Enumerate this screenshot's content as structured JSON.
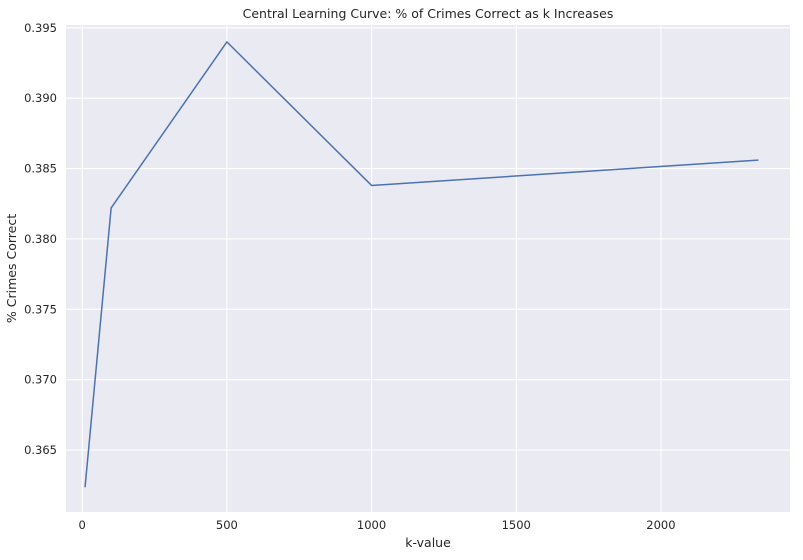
{
  "chart_data": {
    "type": "line",
    "title": "Central Learning Curve: % of Crimes Correct as k Increases",
    "xlabel": "k-value",
    "ylabel": "% Crimes Correct",
    "xlim": [
      -56,
      2446
    ],
    "ylim": [
      0.3606,
      0.3952
    ],
    "x_ticks": [
      0,
      500,
      1000,
      1500,
      2000
    ],
    "y_ticks": [
      0.365,
      0.37,
      0.375,
      0.38,
      0.385,
      0.39,
      0.395
    ],
    "x_tick_labels": [
      "0",
      "500",
      "1000",
      "1500",
      "2000"
    ],
    "y_tick_labels": [
      "0.365",
      "0.370",
      "0.375",
      "0.380",
      "0.385",
      "0.390",
      "0.395"
    ],
    "grid": true,
    "series": [
      {
        "x": [
          10,
          100,
          500,
          1000,
          2335
        ],
        "y": [
          0.3624,
          0.3822,
          0.394,
          0.3838,
          0.3856
        ]
      }
    ]
  },
  "colors": {
    "plot_background": "#eaeaf2",
    "grid": "#ffffff",
    "line": "#4c72b0",
    "text": "#262626"
  }
}
